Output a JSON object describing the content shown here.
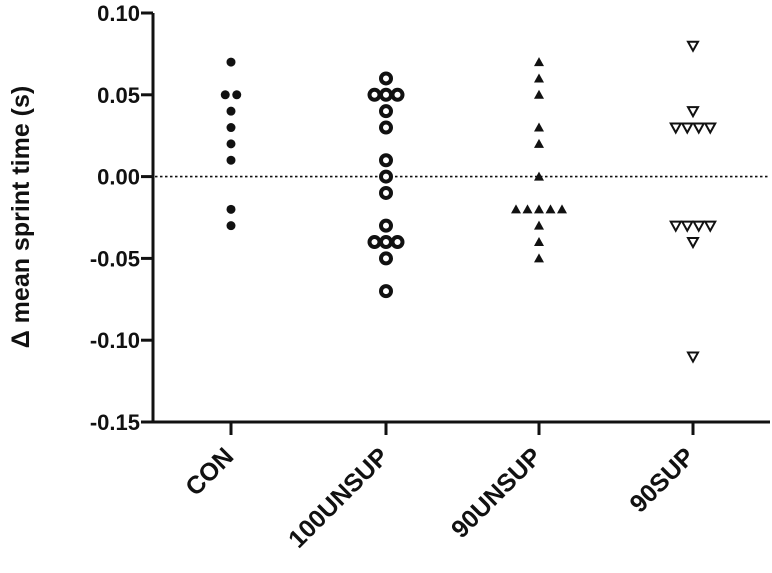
{
  "chart_data": {
    "type": "scatter",
    "title": "",
    "ylabel": "Δ mean sprint time (s)",
    "xlabel": "",
    "ylim": [
      -0.15,
      0.1
    ],
    "y_ticks": [
      0.1,
      0.05,
      0.0,
      -0.05,
      -0.1,
      -0.15
    ],
    "y_tick_labels": [
      "0.10",
      "0.05",
      "0.00",
      "-0.05",
      "-0.10",
      "-0.15"
    ],
    "reference_line": {
      "y": 0.0,
      "style": "dotted"
    },
    "categories": [
      "CON",
      "100UNSUP",
      "90UNSUP",
      "90SUP"
    ],
    "series": [
      {
        "category": "CON",
        "marker": "filled-circle-small",
        "values": [
          0.07,
          0.05,
          0.05,
          0.04,
          0.03,
          0.02,
          0.01,
          -0.02,
          -0.03
        ]
      },
      {
        "category": "100UNSUP",
        "marker": "ring-circle",
        "values": [
          0.06,
          0.05,
          0.05,
          0.05,
          0.04,
          0.03,
          0.01,
          0.0,
          -0.01,
          -0.03,
          -0.04,
          -0.04,
          -0.04,
          -0.05,
          -0.07
        ]
      },
      {
        "category": "90UNSUP",
        "marker": "filled-triangle-up",
        "values": [
          0.07,
          0.06,
          0.05,
          0.03,
          0.02,
          0.0,
          -0.02,
          -0.02,
          -0.02,
          -0.02,
          -0.02,
          -0.03,
          -0.04,
          -0.05
        ]
      },
      {
        "category": "90SUP",
        "marker": "open-triangle-down",
        "values": [
          0.08,
          0.04,
          0.03,
          0.03,
          0.03,
          0.03,
          -0.03,
          -0.03,
          -0.03,
          -0.03,
          -0.04,
          -0.11
        ]
      }
    ],
    "grid": false,
    "legend": "none"
  }
}
